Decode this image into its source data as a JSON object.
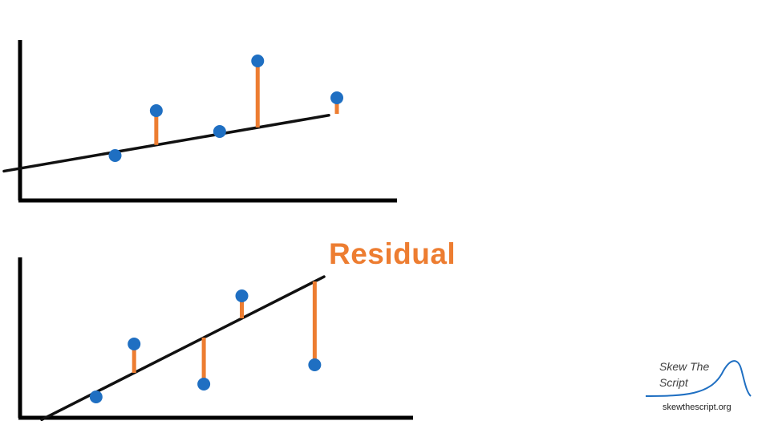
{
  "colors": {
    "axis": "#000000",
    "fit_line": "#111111",
    "point": "#1f6fc2",
    "residual": "#ed7d31",
    "label": "#ed7d31",
    "logo_curve": "#1f6fc2",
    "logo_text": "#404040"
  },
  "annotation": {
    "residual_label": "Residual"
  },
  "logo": {
    "line1": "Skew The",
    "line2": "Script",
    "url": "skewthescript.org"
  },
  "chart_data": [
    {
      "type": "scatter",
      "title": "",
      "xlabel": "",
      "ylabel": "",
      "xlim": [
        0,
        10
      ],
      "ylim": [
        0,
        10
      ],
      "fit_line": {
        "slope": 0.34,
        "intercept": 2.0
      },
      "points": [
        {
          "x": 3.0,
          "y": 2.8
        },
        {
          "x": 4.3,
          "y": 5.6
        },
        {
          "x": 6.3,
          "y": 4.3
        },
        {
          "x": 7.5,
          "y": 8.7
        },
        {
          "x": 10.0,
          "y": 6.4
        }
      ]
    },
    {
      "type": "scatter",
      "title": "",
      "xlabel": "",
      "ylabel": "",
      "xlim": [
        0,
        10
      ],
      "ylim": [
        0,
        10
      ],
      "fit_line": {
        "slope": 1.0,
        "intercept": -0.8
      },
      "points": [
        {
          "x": 2.4,
          "y": 1.3
        },
        {
          "x": 3.6,
          "y": 4.6
        },
        {
          "x": 5.8,
          "y": 2.1
        },
        {
          "x": 7.0,
          "y": 7.6
        },
        {
          "x": 9.3,
          "y": 3.3
        }
      ],
      "labeled_residual_index": 4
    }
  ]
}
